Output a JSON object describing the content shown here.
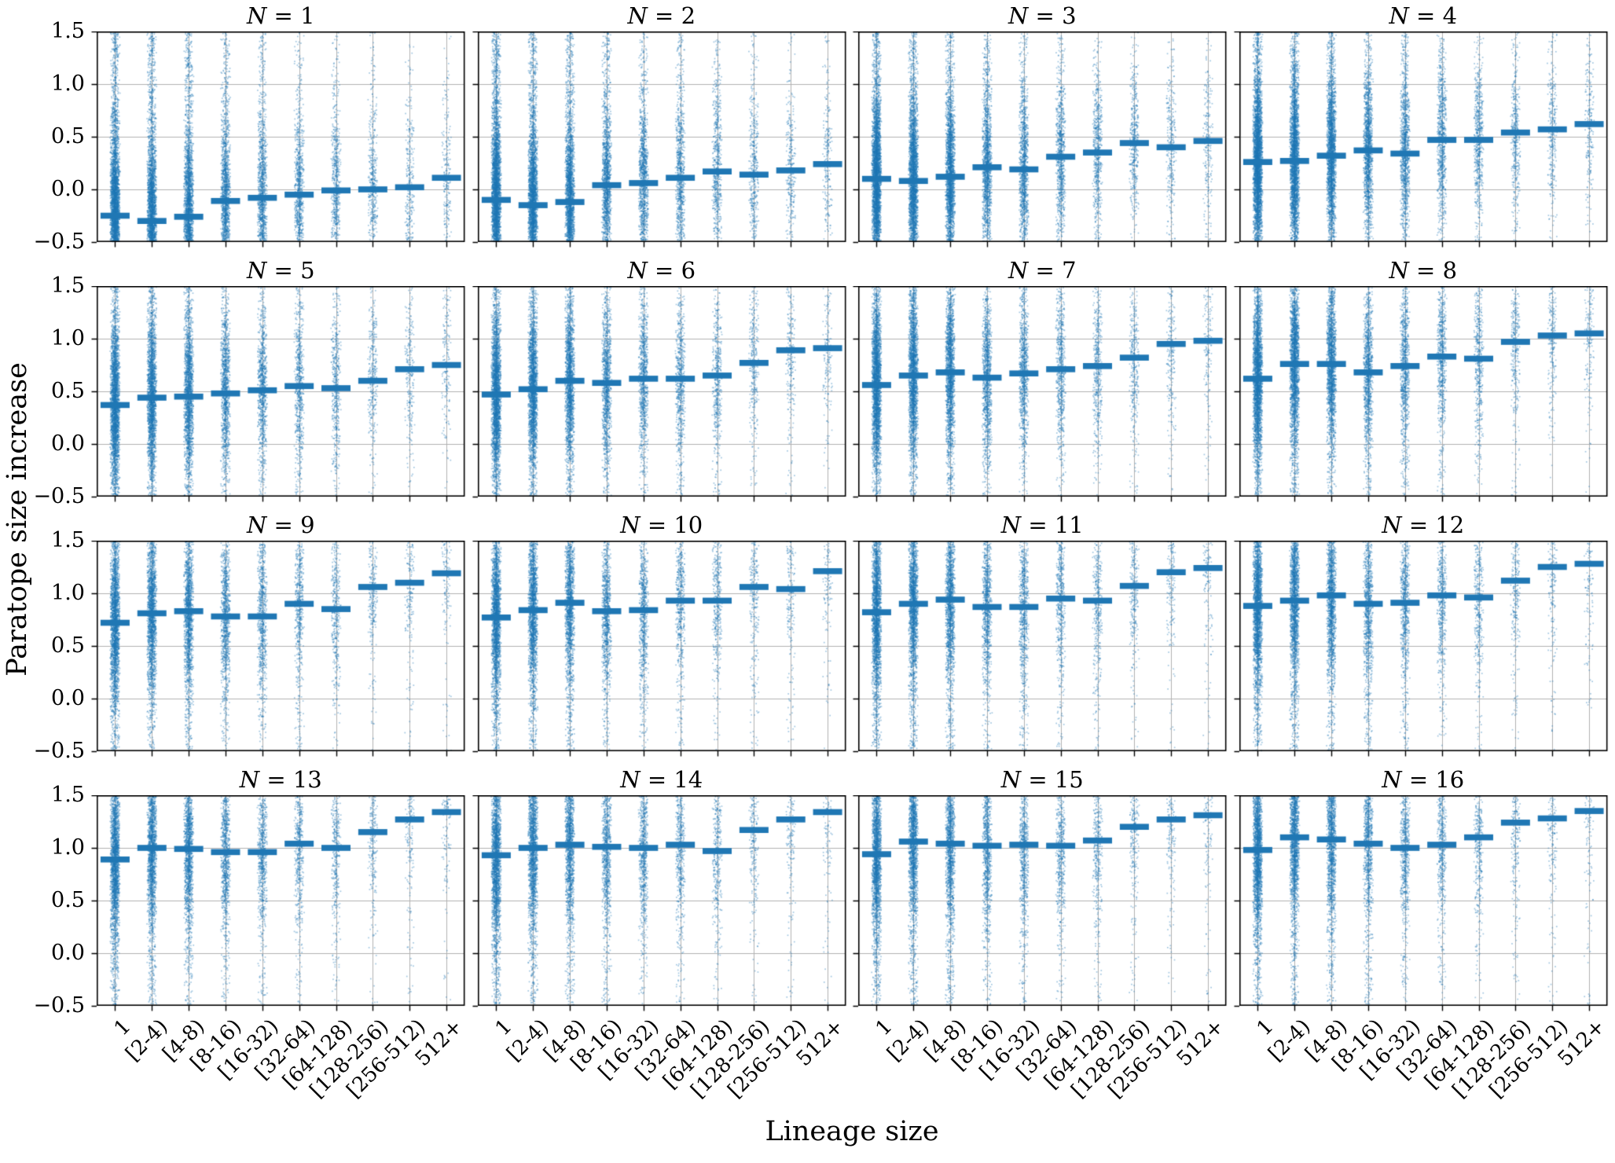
{
  "chart_data": {
    "type": "scatter",
    "variant": "strip-plot-grid-with-median-bars",
    "grid_rows": 4,
    "grid_cols": 4,
    "xlabel": "Lineage size",
    "ylabel": "Paratope size increase",
    "ylim": [
      -0.5,
      1.5
    ],
    "grid": true,
    "legend": "none",
    "y_ticks": [
      1.5,
      1.0,
      0.5,
      0.0,
      -0.5
    ],
    "y_tick_labels": [
      "1.5",
      "1.0",
      "0.5",
      "0.0",
      "−0.5"
    ],
    "categories": [
      "1",
      "[2-4)",
      "[4-8)",
      "[8-16)",
      "[16-32)",
      "[32-64)",
      "[64-128)",
      "[128-256)",
      "[256-512)",
      "512+"
    ],
    "point_color": "#1f77b4",
    "point_alpha": 0.42,
    "median_bar_color": "#1f77b4",
    "gridline_color": "#b0b0b0",
    "title_prefix": "N",
    "subplots": [
      {
        "title": "N = 1",
        "n": 1,
        "medians": [
          -0.25,
          -0.3,
          -0.26,
          -0.11,
          -0.08,
          -0.05,
          -0.01,
          0.0,
          0.02,
          0.11
        ]
      },
      {
        "title": "N = 2",
        "n": 2,
        "medians": [
          -0.1,
          -0.15,
          -0.12,
          0.04,
          0.06,
          0.11,
          0.17,
          0.14,
          0.18,
          0.24
        ]
      },
      {
        "title": "N = 3",
        "n": 3,
        "medians": [
          0.1,
          0.08,
          0.12,
          0.21,
          0.19,
          0.31,
          0.35,
          0.44,
          0.4,
          0.46
        ]
      },
      {
        "title": "N = 4",
        "n": 4,
        "medians": [
          0.26,
          0.27,
          0.32,
          0.37,
          0.34,
          0.47,
          0.47,
          0.54,
          0.57,
          0.62
        ]
      },
      {
        "title": "N = 5",
        "n": 5,
        "medians": [
          0.37,
          0.44,
          0.45,
          0.48,
          0.51,
          0.55,
          0.53,
          0.6,
          0.71,
          0.75
        ]
      },
      {
        "title": "N = 6",
        "n": 6,
        "medians": [
          0.47,
          0.52,
          0.6,
          0.58,
          0.62,
          0.62,
          0.65,
          0.77,
          0.89,
          0.91
        ]
      },
      {
        "title": "N = 7",
        "n": 7,
        "medians": [
          0.56,
          0.65,
          0.68,
          0.63,
          0.67,
          0.71,
          0.74,
          0.82,
          0.95,
          0.98
        ]
      },
      {
        "title": "N = 8",
        "n": 8,
        "medians": [
          0.62,
          0.76,
          0.76,
          0.68,
          0.74,
          0.83,
          0.81,
          0.97,
          1.03,
          1.05
        ]
      },
      {
        "title": "N = 9",
        "n": 9,
        "medians": [
          0.72,
          0.81,
          0.83,
          0.78,
          0.78,
          0.9,
          0.85,
          1.06,
          1.1,
          1.19
        ]
      },
      {
        "title": "N = 10",
        "n": 10,
        "medians": [
          0.77,
          0.84,
          0.91,
          0.83,
          0.84,
          0.93,
          0.93,
          1.06,
          1.04,
          1.21
        ]
      },
      {
        "title": "N = 11",
        "n": 11,
        "medians": [
          0.82,
          0.9,
          0.94,
          0.87,
          0.87,
          0.95,
          0.93,
          1.07,
          1.2,
          1.24
        ]
      },
      {
        "title": "N = 12",
        "n": 12,
        "medians": [
          0.88,
          0.93,
          0.98,
          0.9,
          0.91,
          0.98,
          0.96,
          1.12,
          1.25,
          1.28
        ]
      },
      {
        "title": "N = 13",
        "n": 13,
        "medians": [
          0.89,
          1.0,
          0.99,
          0.96,
          0.96,
          1.04,
          1.0,
          1.15,
          1.27,
          1.34
        ]
      },
      {
        "title": "N = 14",
        "n": 14,
        "medians": [
          0.93,
          1.0,
          1.03,
          1.01,
          1.0,
          1.03,
          0.97,
          1.17,
          1.27,
          1.34
        ]
      },
      {
        "title": "N = 15",
        "n": 15,
        "medians": [
          0.94,
          1.06,
          1.04,
          1.02,
          1.03,
          1.02,
          1.07,
          1.2,
          1.27,
          1.31
        ]
      },
      {
        "title": "N = 16",
        "n": 16,
        "medians": [
          0.98,
          1.1,
          1.08,
          1.04,
          1.0,
          1.03,
          1.1,
          1.24,
          1.28,
          1.35
        ]
      }
    ],
    "points_per_category_base": [
      2600,
      2100,
      1700,
      1050,
      820,
      600,
      430,
      300,
      215,
      155
    ]
  }
}
